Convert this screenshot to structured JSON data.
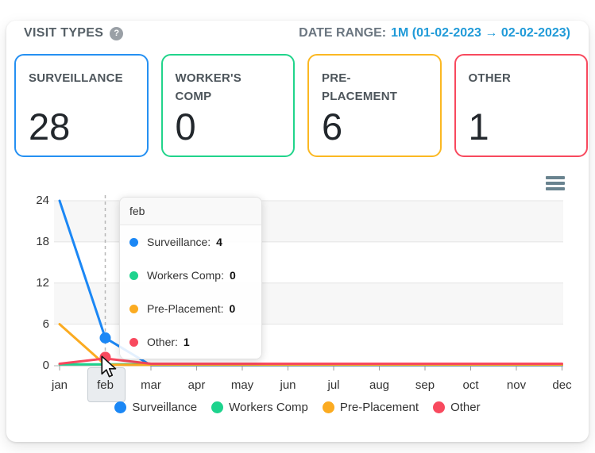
{
  "header": {
    "title": "VISIT TYPES",
    "help_glyph": "?",
    "date_range_label": "DATE RANGE:",
    "date_range_value": "1M (01-02-2023 → 02-02-2023)",
    "date_range_color": "#1f9ad8"
  },
  "summary_cards": [
    {
      "label": "SURVEILLANCE",
      "value": "28",
      "border_color": "#2590f2"
    },
    {
      "label": "WORKER'S COMP",
      "value": "0",
      "border_color": "#21d48b"
    },
    {
      "label": "PRE-PLACEMENT",
      "value": "6",
      "border_color": "#fbb822"
    },
    {
      "label": "OTHER",
      "value": "1",
      "border_color": "#f8495e"
    }
  ],
  "chart_data": {
    "type": "line",
    "categories": [
      "jan",
      "feb",
      "mar",
      "apr",
      "may",
      "jun",
      "jul",
      "aug",
      "sep",
      "oct",
      "nov",
      "dec"
    ],
    "series": [
      {
        "name": "Surveillance",
        "color": "#1b87f5",
        "values": [
          24,
          4,
          0,
          0,
          0,
          0,
          0,
          0,
          0,
          0,
          0,
          0
        ]
      },
      {
        "name": "Workers Comp",
        "color": "#1dd38d",
        "values": [
          0,
          0,
          0,
          0,
          0,
          0,
          0,
          0,
          0,
          0,
          0,
          0
        ]
      },
      {
        "name": "Pre-Placement",
        "color": "#fbab21",
        "values": [
          6,
          0,
          0,
          0,
          0,
          0,
          0,
          0,
          0,
          0,
          0,
          0
        ]
      },
      {
        "name": "Other",
        "color": "#f8495e",
        "values": [
          0,
          1,
          0,
          0,
          0,
          0,
          0,
          0,
          0,
          0,
          0,
          0
        ]
      }
    ],
    "ylim": [
      0,
      24
    ],
    "yticks": [
      0,
      6,
      12,
      18,
      24
    ],
    "grid": true,
    "band_fill": "#f7f7f7",
    "legend_position": "bottom",
    "hover": {
      "category": "feb",
      "crosshair": true,
      "markers": [
        {
          "series": "Surveillance",
          "value": 4
        },
        {
          "series": "Other",
          "value": 1
        }
      ]
    }
  },
  "tooltip": {
    "title": "feb",
    "rows": [
      {
        "name": "Surveillance",
        "value": 4
      },
      {
        "name": "Workers Comp",
        "value": 0
      },
      {
        "name": "Pre-Placement",
        "value": 0
      },
      {
        "name": "Other",
        "value": 1
      }
    ]
  }
}
